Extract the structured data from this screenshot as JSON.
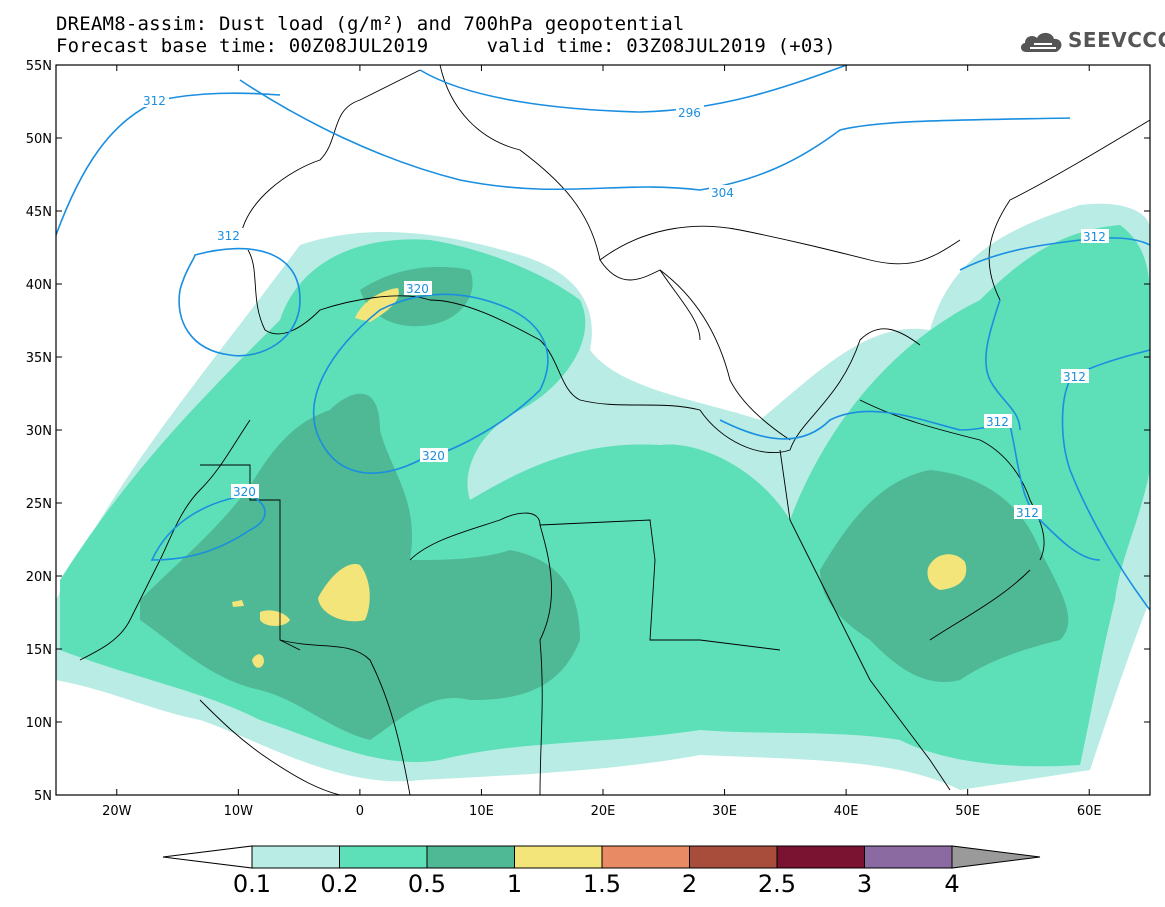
{
  "title": {
    "line1": "DREAM8-assim: Dust load (g/m²) and 700hPa geopotential",
    "line2": "Forecast base time: 00Z08JUL2019     valid time: 03Z08JUL2019 (+03)"
  },
  "logo": {
    "text": "SEEVCCC",
    "icon": "cloud-icon"
  },
  "chart_data": {
    "type": "heatmap",
    "projection": "lat-lon",
    "lon_range": [
      -25,
      65
    ],
    "lat_range": [
      5,
      55
    ],
    "x_ticks": [
      "20W",
      "10W",
      "0",
      "10E",
      "20E",
      "30E",
      "40E",
      "50E",
      "60E"
    ],
    "y_ticks": [
      "55N",
      "50N",
      "45N",
      "40N",
      "35N",
      "30N",
      "25N",
      "20N",
      "15N",
      "10N",
      "5N"
    ],
    "colorbar": {
      "levels": [
        "0.1",
        "0.2",
        "0.5",
        "1",
        "1.5",
        "2",
        "2.5",
        "3",
        "4"
      ],
      "colors": [
        "#b8ece4",
        "#5ddfb8",
        "#4fb894",
        "#f3e57a",
        "#e88a64",
        "#a84c3c",
        "#7a1232",
        "#8a6aa0"
      ],
      "extend_colors": {
        "low": "#ffffff",
        "high": "#9a9a9a"
      }
    },
    "contour_labels": [
      "312",
      "296",
      "304",
      "312",
      "320",
      "320",
      "320",
      "312",
      "312",
      "312",
      "312"
    ]
  }
}
